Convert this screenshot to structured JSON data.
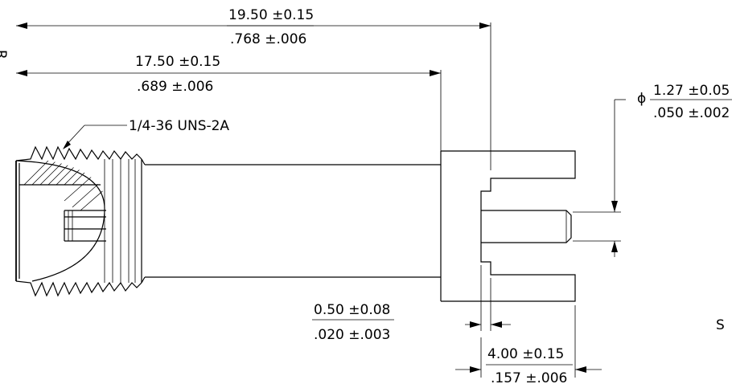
{
  "dimensions": {
    "overall_length": {
      "metric": "19.50 ±0.15",
      "inch": ".768 ±.006"
    },
    "body_length": {
      "metric": "17.50 ±0.15",
      "inch": ".689 ±.006"
    },
    "thread": {
      "label": "1/4-36 UNS-2A"
    },
    "pin_diameter": {
      "symbol": "ϕ",
      "metric": "1.27 ±0.05",
      "inch": ".050 ±.002"
    },
    "flange_thickness": {
      "metric": "0.50 ±0.08",
      "inch": ".020 ±.003"
    },
    "flange_width": {
      "metric": "4.00 ±0.15",
      "inch": ".157 ±.006"
    }
  },
  "edge_labels": {
    "left": "R",
    "right": "S"
  }
}
